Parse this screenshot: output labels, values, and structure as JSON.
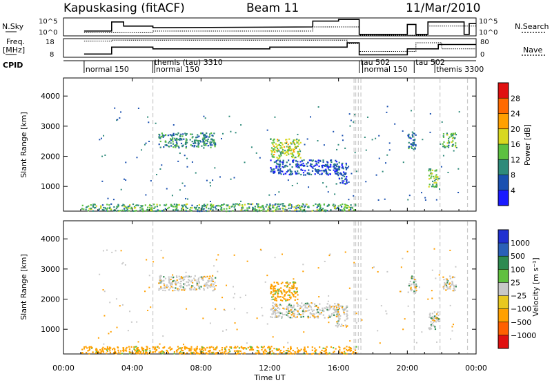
{
  "header": {
    "station": "Kapuskasing (fitACF)",
    "beam": "Beam 11",
    "date": "11/Mar/2010"
  },
  "left_labels": {
    "nsky": "N.Sky",
    "freq": "Freq.",
    "freq_unit": "[MHz]",
    "cpid": "CPID"
  },
  "right_labels": {
    "nsearch": "N.Search",
    "nave": "Nave"
  },
  "noise_axis": {
    "ticks": [
      "10^5",
      "10^0"
    ]
  },
  "freq_axis": {
    "ticks": [
      "18",
      "8"
    ]
  },
  "nave_axis": {
    "ticks": [
      "80",
      "0"
    ]
  },
  "cpid_labels": [
    {
      "text": "normal 150",
      "start_hour": 1.2
    },
    {
      "text": "themis (tau) 3310",
      "start_hour": 5.2
    },
    {
      "text": "normal 150",
      "start_hour": 5.3
    },
    {
      "text": "tau 502",
      "start_hour": 17.2
    },
    {
      "text": "normal 150",
      "start_hour": 17.4
    },
    {
      "text": "tau 502",
      "start_hour": 20.4
    },
    {
      "text": "themis 3300",
      "start_hour": 21.6
    }
  ],
  "chart_data": [
    {
      "type": "heatmap",
      "name": "power",
      "xlabel": "",
      "ylabel": "Slant Range [km]",
      "ylim": [
        180,
        4600
      ],
      "y_ticks": [
        "1000",
        "2000",
        "3000",
        "4000"
      ],
      "colorbar_label": "Power [dB]",
      "colorbar_ticks": [
        "4",
        "8",
        "12",
        "16",
        "20",
        "24",
        "28"
      ],
      "colors": [
        "#1a1aff",
        "#1a50b0",
        "#2e8a7a",
        "#5cc040",
        "#d8d820",
        "#ffa000",
        "#ff6a00",
        "#e01010"
      ],
      "scatter_regions": [
        {
          "hours": [
            5.5,
            8.8
          ],
          "range_km": [
            2300,
            2800
          ],
          "value": 10
        },
        {
          "hours": [
            12.0,
            13.8
          ],
          "range_km": [
            1950,
            2600
          ],
          "value": 16
        },
        {
          "hours": [
            12.0,
            16.0
          ],
          "range_km": [
            1400,
            1900
          ],
          "value": 6
        },
        {
          "hours": [
            15.8,
            16.5
          ],
          "range_km": [
            1100,
            1800
          ],
          "value": 6
        },
        {
          "hours": [
            20.0,
            20.5
          ],
          "range_km": [
            2200,
            2800
          ],
          "value": 8
        },
        {
          "hours": [
            21.2,
            21.8
          ],
          "range_km": [
            1000,
            1600
          ],
          "value": 14
        },
        {
          "hours": [
            22.0,
            22.8
          ],
          "range_km": [
            2300,
            2800
          ],
          "value": 12
        },
        {
          "hours": [
            1.0,
            17.0
          ],
          "range_km": [
            200,
            450
          ],
          "value": 12
        }
      ]
    },
    {
      "type": "heatmap",
      "name": "velocity",
      "xlabel": "Time UT",
      "ylabel": "Slant Range [km]",
      "ylim": [
        180,
        4600
      ],
      "y_ticks": [
        "1000",
        "2000",
        "3000",
        "4000"
      ],
      "colorbar_label": "Velocity [m s⁻¹]",
      "colorbar_ticks": [
        "1000",
        "500",
        "100",
        "25",
        "−25",
        "−100",
        "−500",
        "−1000"
      ],
      "colors": [
        "#2030d0",
        "#2a60b8",
        "#2e8a50",
        "#60c040",
        "#c8c8c8",
        "#e8c820",
        "#ffa000",
        "#ff6000",
        "#e01010"
      ],
      "scatter_regions": [
        {
          "hours": [
            5.5,
            8.8
          ],
          "range_km": [
            2300,
            2800
          ],
          "value": 0
        },
        {
          "hours": [
            12.0,
            13.6
          ],
          "range_km": [
            1950,
            2600
          ],
          "value": -150
        },
        {
          "hours": [
            12.0,
            16.0
          ],
          "range_km": [
            1400,
            1900
          ],
          "value": 0
        },
        {
          "hours": [
            15.8,
            16.5
          ],
          "range_km": [
            1100,
            1800
          ],
          "value": 0
        },
        {
          "hours": [
            20.0,
            20.5
          ],
          "range_km": [
            2200,
            2800
          ],
          "value": 0
        },
        {
          "hours": [
            21.2,
            21.8
          ],
          "range_km": [
            1000,
            1600
          ],
          "value": 0
        },
        {
          "hours": [
            22.0,
            22.8
          ],
          "range_km": [
            2300,
            2800
          ],
          "value": 0
        },
        {
          "hours": [
            1.0,
            17.0
          ],
          "range_km": [
            200,
            450
          ],
          "value": -150
        }
      ]
    }
  ],
  "time_axis": {
    "ticks": [
      "00:00",
      "04:00",
      "08:00",
      "12:00",
      "16:00",
      "20:00",
      "00:00"
    ],
    "label": "Time UT"
  }
}
